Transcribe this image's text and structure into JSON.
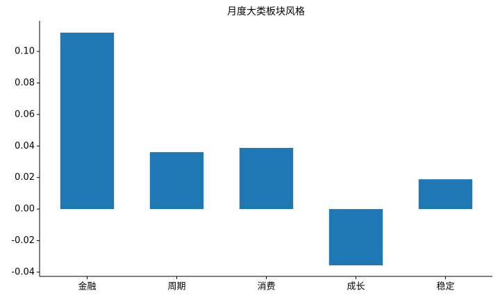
{
  "chart_data": {
    "type": "bar",
    "title": "月度大类板块风格",
    "categories": [
      "金融",
      "周期",
      "消费",
      "成长",
      "稳定"
    ],
    "values": [
      0.1119,
      0.0361,
      0.0388,
      -0.0357,
      0.0189
    ],
    "color": "#1f77b4",
    "ylim": [
      -0.0427,
      0.1194
    ],
    "yticks": [
      -0.04,
      -0.02,
      {
        "value": 0,
        "label": "0.00"
      },
      0.02,
      0.04,
      0.06,
      0.08,
      {
        "value": 0.1,
        "label": "0.10"
      }
    ],
    "grid": false
  }
}
